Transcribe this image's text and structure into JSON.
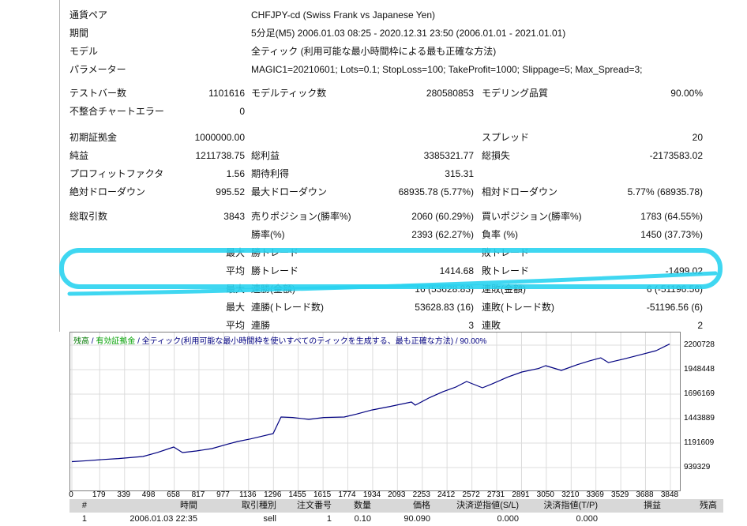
{
  "highlight": {
    "color": "#2ad3f0"
  },
  "stats": {
    "rows": [
      {
        "c1": "通貨ペア",
        "wide": "CHFJPY-cd (Swiss Frank vs Japanese Yen)"
      },
      {
        "c1": "期間",
        "wide": "5分足(M5) 2006.01.03 08:25 - 2020.12.31 23:50 (2006.01.01 - 2021.01.01)"
      },
      {
        "c1": "モデル",
        "wide": "全ティック (利用可能な最小時間枠による最も正確な方法)"
      },
      {
        "c1": "パラメーター",
        "wide": "MAGIC1=20210601; Lots=0.1; StopLoss=100; TakeProfit=1000; Slippage=5; Max_Spread=3;"
      },
      {
        "gap": 7,
        "c1": "テストバー数",
        "v1": "1101616",
        "c2": "モデルティック数",
        "v2": "280580853",
        "c3": "モデリング品質",
        "v3": "90.00%"
      },
      {
        "c1": "不整合チャートエラー",
        "v1": "0"
      },
      {
        "gap": 10,
        "c1": "初期証拠金",
        "v1": "1000000.00",
        "c3": "スプレッド",
        "v3": "20"
      },
      {
        "c1": "純益",
        "v1": "1211738.75",
        "c2": "総利益",
        "v2": "3385321.77",
        "c3": "総損失",
        "v3": "-2173583.02"
      },
      {
        "c1": "プロフィットファクタ",
        "v1": "1.56",
        "c2": "期待利得",
        "v2": "315.31"
      },
      {
        "c1": "絶対ドローダウン",
        "v1": "995.52",
        "c2": "最大ドローダウン",
        "v2": "68935.78 (5.77%)",
        "c3": "相対ドローダウン",
        "v3": "5.77% (68935.78)"
      },
      {
        "gap": 8,
        "c1": "総取引数",
        "v1": "3843",
        "c2": "売りポジション(勝率%)",
        "v2": "2060 (60.29%)",
        "c3": "買いポジション(勝率%)",
        "v3": "1783 (64.55%)"
      },
      {
        "c2": "勝率(%)",
        "v2": "2393 (62.27%)",
        "c3": "負率 (%)",
        "v3": "1450 (37.73%)"
      },
      {
        "v1": "最大",
        "c2": "勝トレード",
        "c3": "敗トレード"
      },
      {
        "v1": "平均",
        "c2": "勝トレード",
        "v2": "1414.68",
        "c3": "敗トレード",
        "v3": "-1499.02"
      },
      {
        "v1": "最大",
        "c2": "連勝(金額)",
        "v2": "16 (53628.83)",
        "c3": "連敗(金額)",
        "v3": "6 (-51196.56)"
      },
      {
        "v1": "最大",
        "c2": "連勝(トレード数)",
        "v2": "53628.83 (16)",
        "c3": "連敗(トレード数)",
        "v3": "-51196.56 (6)"
      },
      {
        "v1": "平均",
        "c2": "連勝",
        "v2": "3",
        "c3": "連敗",
        "v3": "2"
      }
    ]
  },
  "chart_data": {
    "type": "line",
    "legend": {
      "balance": "残高",
      "sep": " / ",
      "equity": "有効証拠金",
      "rest": " / 全ティック(利用可能な最小時間枠を使いすべてのティックを生成する、最も正確な方法) / 90.00%"
    },
    "y_ticks": [
      2200728,
      1948448,
      1696169,
      1443889,
      1191609,
      939329
    ],
    "x_ticks": [
      0,
      179,
      339,
      498,
      658,
      817,
      977,
      1136,
      1296,
      1455,
      1615,
      1774,
      1934,
      2093,
      2253,
      2412,
      2572,
      2731,
      2891,
      3050,
      3210,
      3369,
      3529,
      3688,
      3848
    ],
    "ylim": [
      939329,
      2200728
    ],
    "xlim": [
      0,
      3848
    ],
    "grid": true,
    "series": [
      {
        "name": "残高",
        "color": "#000080",
        "points": [
          [
            0,
            1000000
          ],
          [
            100,
            1010000
          ],
          [
            200,
            1022000
          ],
          [
            300,
            1032000
          ],
          [
            457,
            1053000
          ],
          [
            550,
            1095000
          ],
          [
            655,
            1151000
          ],
          [
            711,
            1094000
          ],
          [
            800,
            1110000
          ],
          [
            900,
            1135000
          ],
          [
            1000,
            1180000
          ],
          [
            1066,
            1208000
          ],
          [
            1150,
            1235000
          ],
          [
            1220,
            1262000
          ],
          [
            1294,
            1289000
          ],
          [
            1345,
            1460000
          ],
          [
            1420,
            1455000
          ],
          [
            1523,
            1436000
          ],
          [
            1620,
            1455000
          ],
          [
            1751,
            1460000
          ],
          [
            1830,
            1490000
          ],
          [
            1929,
            1533000
          ],
          [
            2050,
            1570000
          ],
          [
            2183,
            1615000
          ],
          [
            2208,
            1582000
          ],
          [
            2300,
            1660000
          ],
          [
            2386,
            1721000
          ],
          [
            2470,
            1770000
          ],
          [
            2538,
            1826000
          ],
          [
            2640,
            1761000
          ],
          [
            2700,
            1800000
          ],
          [
            2800,
            1870000
          ],
          [
            2893,
            1924000
          ],
          [
            3000,
            1960000
          ],
          [
            3046,
            1989000
          ],
          [
            3147,
            1940000
          ],
          [
            3250,
            2000000
          ],
          [
            3330,
            2040000
          ],
          [
            3401,
            2070000
          ],
          [
            3450,
            2021000
          ],
          [
            3553,
            2060000
          ],
          [
            3650,
            2100000
          ],
          [
            3756,
            2144000
          ],
          [
            3843,
            2211739
          ]
        ]
      }
    ]
  },
  "trades": {
    "headers": [
      "#",
      "時間",
      "取引種別",
      "注文番号",
      "数量",
      "価格",
      "決済逆指値(S/L)",
      "決済指値(T/P)",
      "損益",
      "残高"
    ],
    "rows": [
      [
        "1",
        "2006.01.03 22:35",
        "sell",
        "1",
        "0.10",
        "90.090",
        "0.000",
        "0.000",
        "",
        ""
      ]
    ]
  }
}
